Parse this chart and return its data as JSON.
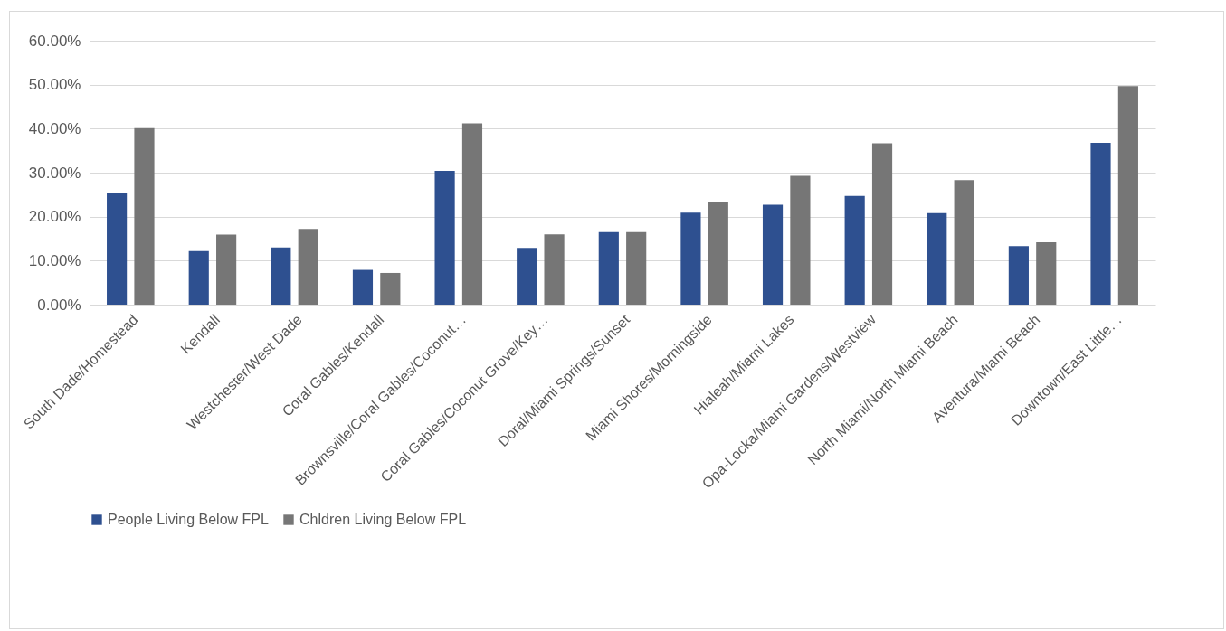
{
  "chart_data": {
    "type": "bar",
    "categories": [
      "South Dade/Homestead",
      "Kendall",
      "Westchester/West Dade",
      "Coral Gables/Kendall",
      "Brownsville/Coral Gables/Coconut…",
      "Coral Gables/Coconut Grove/Key…",
      "Doral/Miami Springs/Sunset",
      "Miami Shores/Morningside",
      "Hialeah/Miami Lakes",
      "Opa-Locka/Miami Gardens/Westview",
      "North Miami/North Miami Beach",
      "Aventura/Miami Beach",
      "Downtown/East Little…"
    ],
    "series": [
      {
        "name": "People Living Below FPL",
        "color": "#2e5090",
        "values": [
          25.4,
          12.2,
          13.0,
          7.9,
          30.4,
          12.9,
          16.5,
          20.9,
          22.7,
          24.7,
          20.8,
          13.3,
          36.8
        ]
      },
      {
        "name": "Chldren Living Below FPL",
        "color": "#767676",
        "values": [
          40.1,
          15.9,
          17.2,
          7.2,
          41.2,
          16.0,
          16.5,
          23.3,
          29.3,
          36.7,
          28.3,
          14.2,
          49.7
        ]
      }
    ],
    "ylim": [
      0,
      60
    ],
    "yticks": [
      {
        "value": 0,
        "label": "0.00%"
      },
      {
        "value": 10,
        "label": "10.00%"
      },
      {
        "value": 20,
        "label": "20.00%"
      },
      {
        "value": 30,
        "label": "30.00%"
      },
      {
        "value": 40,
        "label": "40.00%"
      },
      {
        "value": 50,
        "label": "50.00%"
      },
      {
        "value": 60,
        "label": "60.00%"
      }
    ],
    "grid": "y",
    "legend": "bottom"
  }
}
